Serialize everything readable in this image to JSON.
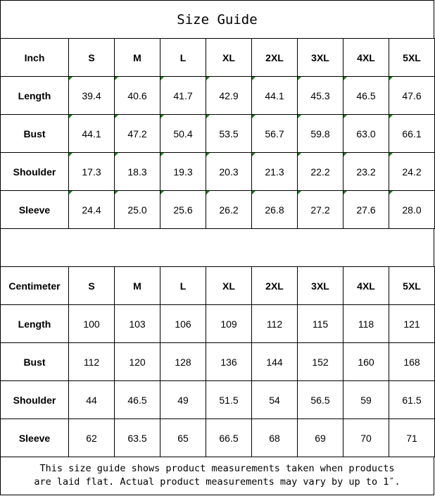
{
  "title": "Size Guide",
  "accent_marker_color": "#1a7f1a",
  "tables": [
    {
      "unit": "Inch",
      "sizes": [
        "S",
        "M",
        "L",
        "XL",
        "2XL",
        "3XL",
        "4XL",
        "5XL"
      ],
      "rows": [
        {
          "label": "Length",
          "values": [
            "39.4",
            "40.6",
            "41.7",
            "42.9",
            "44.1",
            "45.3",
            "46.5",
            "47.6"
          ]
        },
        {
          "label": "Bust",
          "values": [
            "44.1",
            "47.2",
            "50.4",
            "53.5",
            "56.7",
            "59.8",
            "63.0",
            "66.1"
          ]
        },
        {
          "label": "Shoulder",
          "values": [
            "17.3",
            "18.3",
            "19.3",
            "20.3",
            "21.3",
            "22.2",
            "23.2",
            "24.2"
          ]
        },
        {
          "label": "Sleeve",
          "values": [
            "24.4",
            "25.0",
            "25.6",
            "26.2",
            "26.8",
            "27.2",
            "27.6",
            "28.0"
          ]
        }
      ]
    },
    {
      "unit": "Centimeter",
      "sizes": [
        "S",
        "M",
        "L",
        "XL",
        "2XL",
        "3XL",
        "4XL",
        "5XL"
      ],
      "rows": [
        {
          "label": "Length",
          "values": [
            "100",
            "103",
            "106",
            "109",
            "112",
            "115",
            "118",
            "121"
          ]
        },
        {
          "label": "Bust",
          "values": [
            "112",
            "120",
            "128",
            "136",
            "144",
            "152",
            "160",
            "168"
          ]
        },
        {
          "label": "Shoulder",
          "values": [
            "44",
            "46.5",
            "49",
            "51.5",
            "54",
            "56.5",
            "59",
            "61.5"
          ]
        },
        {
          "label": "Sleeve",
          "values": [
            "62",
            "63.5",
            "65",
            "66.5",
            "68",
            "69",
            "70",
            "71"
          ]
        }
      ]
    }
  ],
  "note": {
    "line1": "This size guide shows product measurements taken when products",
    "line2": "are laid flat. Actual product measurements may vary by up to 1″."
  }
}
